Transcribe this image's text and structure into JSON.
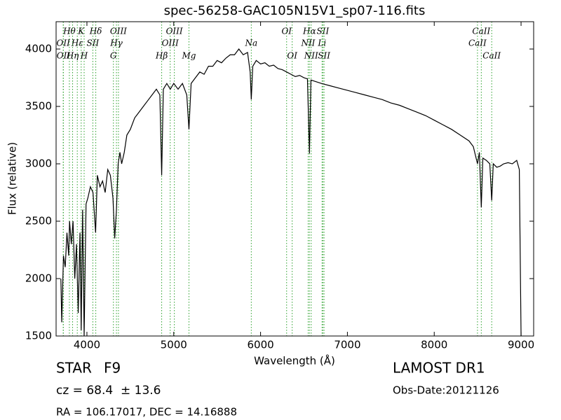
{
  "chart_data": {
    "type": "line",
    "title": "spec-56258-GAC105N15V1_sp07-116.fits",
    "x_label": "Wavelength (Å)",
    "y_label": "Flux (relative)",
    "color": "#000000",
    "line_color": "#2ca02c",
    "xlim": [
      3645,
      9145
    ],
    "ylim": [
      1500,
      4238
    ],
    "xticks": [
      4000,
      5000,
      6000,
      7000,
      8000,
      9000
    ],
    "yticks": [
      1500,
      2000,
      2500,
      3000,
      3500,
      4000
    ],
    "x": [
      3700,
      3710,
      3730,
      3750,
      3770,
      3790,
      3800,
      3820,
      3840,
      3860,
      3880,
      3900,
      3920,
      3934,
      3950,
      3968,
      3990,
      4010,
      4040,
      4070,
      4100,
      4120,
      4150,
      4180,
      4210,
      4240,
      4270,
      4300,
      4320,
      4340,
      4360,
      4380,
      4400,
      4430,
      4460,
      4500,
      4550,
      4600,
      4650,
      4700,
      4750,
      4800,
      4840,
      4861,
      4880,
      4920,
      4960,
      5000,
      5050,
      5100,
      5150,
      5175,
      5200,
      5250,
      5300,
      5350,
      5400,
      5450,
      5500,
      5550,
      5600,
      5650,
      5700,
      5750,
      5800,
      5850,
      5880,
      5893,
      5910,
      5950,
      6000,
      6050,
      6100,
      6150,
      6200,
      6250,
      6300,
      6350,
      6400,
      6450,
      6500,
      6540,
      6563,
      6580,
      6620,
      6700,
      6800,
      6900,
      7000,
      7100,
      7200,
      7300,
      7400,
      7500,
      7600,
      7700,
      7800,
      7900,
      8000,
      8100,
      8200,
      8300,
      8400,
      8450,
      8498,
      8520,
      8542,
      8560,
      8600,
      8640,
      8662,
      8680,
      8720,
      8760,
      8800,
      8850,
      8900,
      8950,
      8980,
      9000
    ],
    "values": [
      2000,
      1620,
      2200,
      2100,
      2400,
      2200,
      2500,
      2300,
      2500,
      2000,
      2300,
      1700,
      2400,
      1550,
      2600,
      1500,
      2650,
      2700,
      2800,
      2750,
      2400,
      2900,
      2800,
      2850,
      2750,
      2950,
      2900,
      2700,
      2350,
      2600,
      3000,
      3100,
      3000,
      3100,
      3250,
      3300,
      3400,
      3450,
      3500,
      3550,
      3600,
      3650,
      3600,
      2900,
      3650,
      3700,
      3650,
      3700,
      3650,
      3700,
      3600,
      3300,
      3700,
      3750,
      3800,
      3780,
      3850,
      3850,
      3900,
      3880,
      3920,
      3950,
      3950,
      4000,
      3950,
      3970,
      3800,
      3560,
      3850,
      3900,
      3870,
      3880,
      3850,
      3860,
      3830,
      3820,
      3800,
      3780,
      3760,
      3770,
      3750,
      3740,
      3090,
      3730,
      3720,
      3700,
      3680,
      3660,
      3640,
      3620,
      3600,
      3580,
      3560,
      3530,
      3510,
      3480,
      3450,
      3420,
      3380,
      3340,
      3300,
      3250,
      3200,
      3150,
      3000,
      3100,
      2620,
      3050,
      3030,
      3000,
      2680,
      3000,
      2970,
      2980,
      3000,
      3010,
      3000,
      3030,
      2950,
      1500
    ],
    "line_labels": [
      [
        {
          "label": "Hθ",
          "x": 3798
        },
        {
          "label": "K",
          "x": 3934
        },
        {
          "label": "Hδ",
          "x": 4102
        },
        {
          "label": "OIII",
          "x": 4363
        },
        {
          "label": "OIII",
          "x": 5007
        },
        {
          "label": "OI",
          "x": 6300
        },
        {
          "label": "Hα",
          "x": 6563
        },
        {
          "label": "SII",
          "x": 6717
        },
        {
          "label": "CaII",
          "x": 8542
        }
      ],
      [
        {
          "label": "OII",
          "x": 3727
        },
        {
          "label": "Hε",
          "x": 3889
        },
        {
          "label": "SII",
          "x": 4068
        },
        {
          "label": "Hγ",
          "x": 4340
        },
        {
          "label": "OIII",
          "x": 4959
        },
        {
          "label": "Na",
          "x": 5893
        },
        {
          "label": "NII",
          "x": 6548
        },
        {
          "label": "Li",
          "x": 6708
        },
        {
          "label": "CaII",
          "x": 8498
        }
      ],
      [
        {
          "label": "OII",
          "x": 3729
        },
        {
          "label": "Hη",
          "x": 3835
        },
        {
          "label": "H",
          "x": 3968
        },
        {
          "label": "G",
          "x": 4305
        },
        {
          "label": "Hβ",
          "x": 4861
        },
        {
          "label": "Mg",
          "x": 5175
        },
        {
          "label": "OI",
          "x": 6364
        },
        {
          "label": "NII",
          "x": 6583
        },
        {
          "label": "SII",
          "x": 6731
        },
        {
          "label": "CaII",
          "x": 8662
        }
      ]
    ],
    "info": {
      "class": "STAR",
      "subclass": "F9",
      "redshift": "cz = 68.4  ± 13.6",
      "coords": "RA = 106.17017, DEC = 14.16888",
      "survey": "LAMOST DR1",
      "date": "Obs-Date:20121126"
    }
  }
}
